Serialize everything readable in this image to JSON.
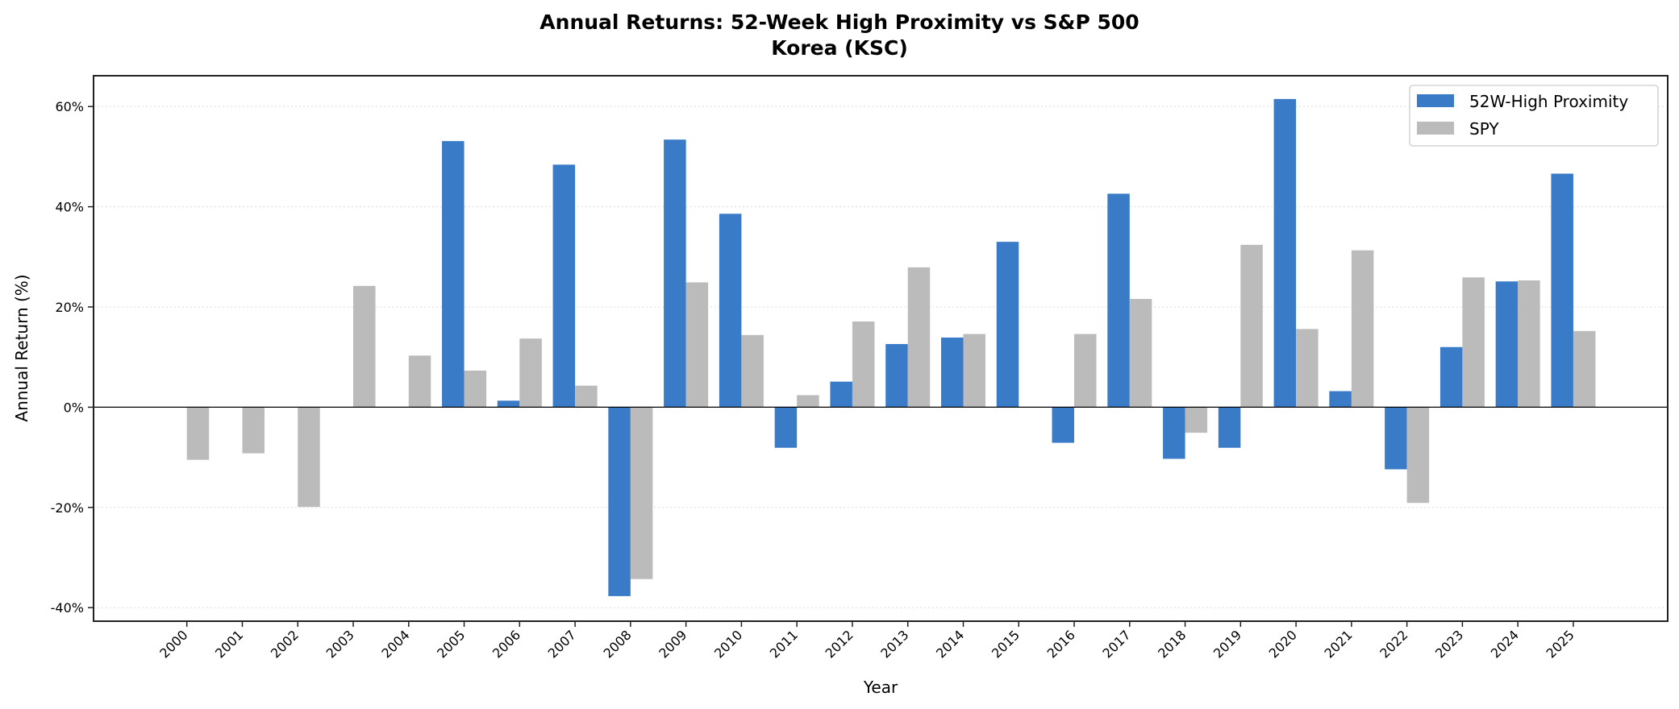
{
  "chart_data": {
    "type": "bar",
    "title": "Annual Returns: 52-Week High Proximity vs S&P 500",
    "subtitle": "Korea (KSC)",
    "xlabel": "Year",
    "ylabel": "Annual Return (%)",
    "ylim": [
      -42,
      66
    ],
    "yticks": [
      -40,
      -20,
      0,
      20,
      40,
      60
    ],
    "ytick_labels": [
      "-40%",
      "-20%",
      "0%",
      "20%",
      "40%",
      "60%"
    ],
    "grid": "y, dotted",
    "legend_position": "top-right",
    "categories": [
      "2000",
      "2001",
      "2002",
      "2003",
      "2004",
      "2005",
      "2006",
      "2007",
      "2008",
      "2009",
      "2010",
      "2011",
      "2012",
      "2013",
      "2014",
      "2015",
      "2016",
      "2017",
      "2018",
      "2019",
      "2020",
      "2021",
      "2022",
      "2023",
      "2024",
      "2025"
    ],
    "series": [
      {
        "name": "52W-High Proximity",
        "color": "#3a7bc8",
        "values": [
          null,
          null,
          null,
          null,
          null,
          53.1,
          1.3,
          48.4,
          -37.7,
          53.4,
          38.6,
          -8.1,
          5.1,
          12.6,
          13.9,
          33.0,
          -7.1,
          42.6,
          -10.3,
          -8.1,
          61.5,
          3.2,
          -12.4,
          12.0,
          25.1,
          46.6
        ]
      },
      {
        "name": "SPY",
        "color": "#bbbbbb",
        "values": [
          -10.5,
          -9.2,
          -19.9,
          24.2,
          10.3,
          7.3,
          13.7,
          4.3,
          -34.3,
          24.9,
          14.4,
          2.4,
          17.1,
          27.9,
          14.6,
          null,
          14.6,
          21.6,
          -5.1,
          32.4,
          15.6,
          31.3,
          -19.1,
          25.9,
          25.3,
          15.2
        ]
      }
    ]
  }
}
